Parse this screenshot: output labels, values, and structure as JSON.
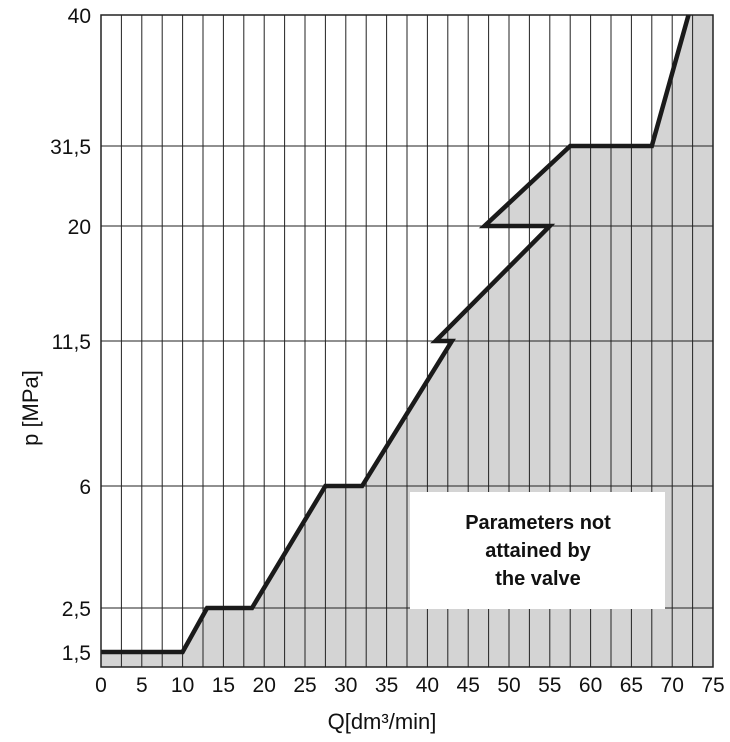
{
  "chart_data": {
    "type": "area",
    "title": "",
    "xlabel": "Q[dm³/min]",
    "ylabel": "p [MPa]",
    "x_ticks": [
      "0",
      "5",
      "10",
      "15",
      "20",
      "25",
      "30",
      "35",
      "40",
      "45",
      "50",
      "55",
      "60",
      "65",
      "70",
      "75"
    ],
    "y_ticks": [
      "1,5",
      "2,5",
      "6",
      "11,5",
      "20",
      "31,5",
      "40"
    ],
    "y_scale": "categorical-stepped",
    "xlim": [
      0,
      75
    ],
    "grid": "vertical every 2.5, horizontal at y ticks",
    "series": [
      {
        "x": [
          0,
          10,
          13,
          18.5,
          27.5,
          32,
          43,
          41,
          55,
          47,
          57.5,
          67.5,
          72
        ],
        "y": [
          1.5,
          1.5,
          2.5,
          2.5,
          6,
          6,
          11.5,
          11.5,
          20,
          20,
          31.5,
          31.5,
          40
        ]
      }
    ],
    "fill_color": "#d4d4d4",
    "line_color": "#1a1a1a",
    "annotation": {
      "lines": [
        "Parameters not",
        "attained by",
        "the valve"
      ]
    }
  }
}
